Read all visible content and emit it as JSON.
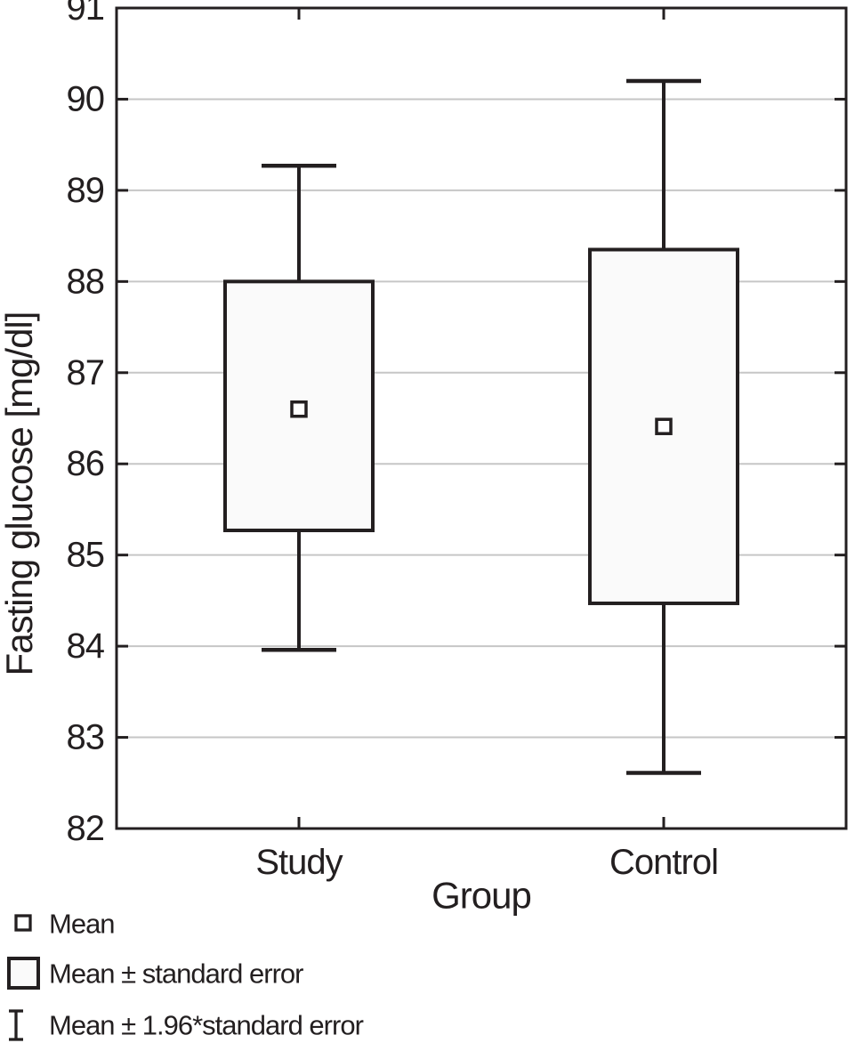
{
  "chart_data": {
    "type": "box",
    "title": "",
    "xlabel": "Group",
    "ylabel": "Fasting glucose [mg/dl]",
    "ylim": [
      82,
      91
    ],
    "yticks": [
      82,
      83,
      84,
      85,
      86,
      87,
      88,
      89,
      90,
      91
    ],
    "categories": [
      "Study",
      "Control"
    ],
    "series": [
      {
        "group": "Study",
        "mean": 86.6,
        "se_low": 85.27,
        "se_high": 88.0,
        "ci_low": 83.96,
        "ci_high": 89.27
      },
      {
        "group": "Control",
        "mean": 86.41,
        "se_low": 84.47,
        "se_high": 88.35,
        "ci_low": 82.61,
        "ci_high": 90.2
      }
    ],
    "legend": [
      {
        "marker": "mean-square",
        "label": "Mean"
      },
      {
        "marker": "se-box",
        "label": "Mean ± standard error"
      },
      {
        "marker": "ci-whisker",
        "label": "Mean ± 1.96*standard error"
      }
    ],
    "grid": "horizontal",
    "legend_position": "bottom-left",
    "colors": {
      "line": "#231f20",
      "grid": "#c6c6c6",
      "box_fill": "#fafafa",
      "marker_fill": "#ffffff",
      "background": "#ffffff"
    }
  }
}
